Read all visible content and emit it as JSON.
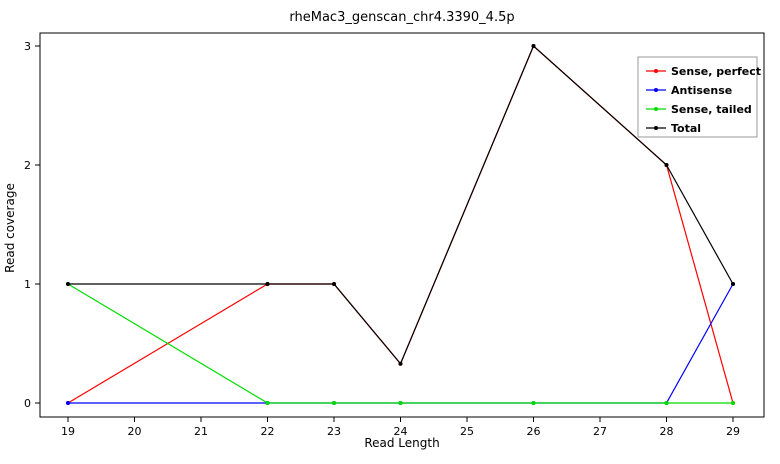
{
  "title": "rheMac3_genscan_chr4.3390_4.5p",
  "chart_data": {
    "type": "line",
    "x": [
      19,
      22,
      23,
      24,
      26,
      28,
      29
    ],
    "series": [
      {
        "name": "Sense, perfect",
        "color": "#ff0000",
        "values": [
          0,
          1,
          1,
          0.33,
          3,
          2,
          0
        ]
      },
      {
        "name": "Antisense",
        "color": "#0000ff",
        "values": [
          0,
          0,
          0,
          0,
          0,
          0,
          1
        ]
      },
      {
        "name": "Sense, tailed",
        "color": "#00dd00",
        "values": [
          1,
          0,
          0,
          0,
          0,
          0,
          0
        ]
      },
      {
        "name": "Total",
        "color": "#000000",
        "values": [
          1,
          1,
          1,
          0.33,
          3,
          2,
          1
        ]
      }
    ],
    "xlabel": "Read Length",
    "ylabel": "Read coverage",
    "xticks": [
      19,
      20,
      21,
      22,
      23,
      24,
      25,
      26,
      27,
      28,
      29
    ],
    "yticks": [
      0,
      1,
      2,
      3
    ],
    "xlim": [
      18.6,
      29.45
    ],
    "ylim": [
      -0.05,
      3.15
    ],
    "grid": false,
    "legend_position": "top-right"
  }
}
